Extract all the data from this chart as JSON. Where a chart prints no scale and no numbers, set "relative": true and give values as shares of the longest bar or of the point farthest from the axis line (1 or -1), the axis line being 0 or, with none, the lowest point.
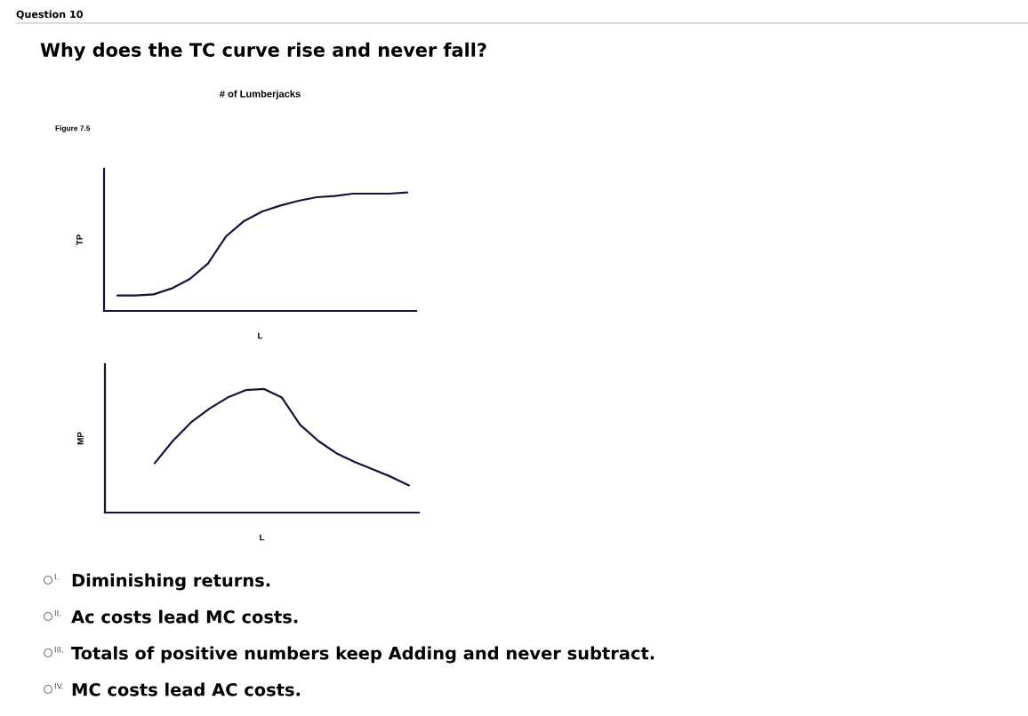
{
  "chart_data": [
    {
      "type": "line",
      "title": "# of Lumberjacks",
      "xlabel": "L",
      "ylabel": "TP",
      "relative": true,
      "grid": false,
      "annotations": [
        "Question 10",
        "Why does the TC curve rise and never fall?",
        "Figure 7.5"
      ],
      "categories": [
        null,
        null,
        null,
        null,
        null,
        null,
        null,
        null,
        null,
        null,
        null,
        null,
        null,
        null,
        null,
        null,
        null
      ],
      "series": [
        {
          "color": "#14143a",
          "values": [
            0.13,
            0.13,
            0.14,
            0.19,
            0.27,
            0.4,
            0.63,
            0.76,
            0.84,
            0.89,
            0.93,
            0.96,
            0.97,
            0.99,
            0.99,
            0.99,
            1
          ]
        }
      ]
    },
    {
      "type": "line",
      "xlabel": "L",
      "ylabel": "MP",
      "relative": true,
      "grid": false,
      "annotations": [
        "I.",
        "Diminishing returns.",
        "II.",
        "Ac costs lead MC costs.",
        "III.",
        "Totals of positive numbers keep Adding and never subtract.",
        "IV.",
        "MC costs lead AC costs."
      ],
      "categories": [
        null,
        null,
        null,
        null,
        null,
        null,
        null,
        null,
        null,
        null,
        null,
        null,
        null,
        null,
        null
      ],
      "series": [
        {
          "color": "#14143a",
          "values": [
            0.4,
            0.58,
            0.73,
            0.84,
            0.93,
            0.99,
            1,
            0.93,
            0.71,
            0.58,
            0.48,
            0.41,
            0.35,
            0.29,
            0.22
          ]
        }
      ]
    }
  ]
}
